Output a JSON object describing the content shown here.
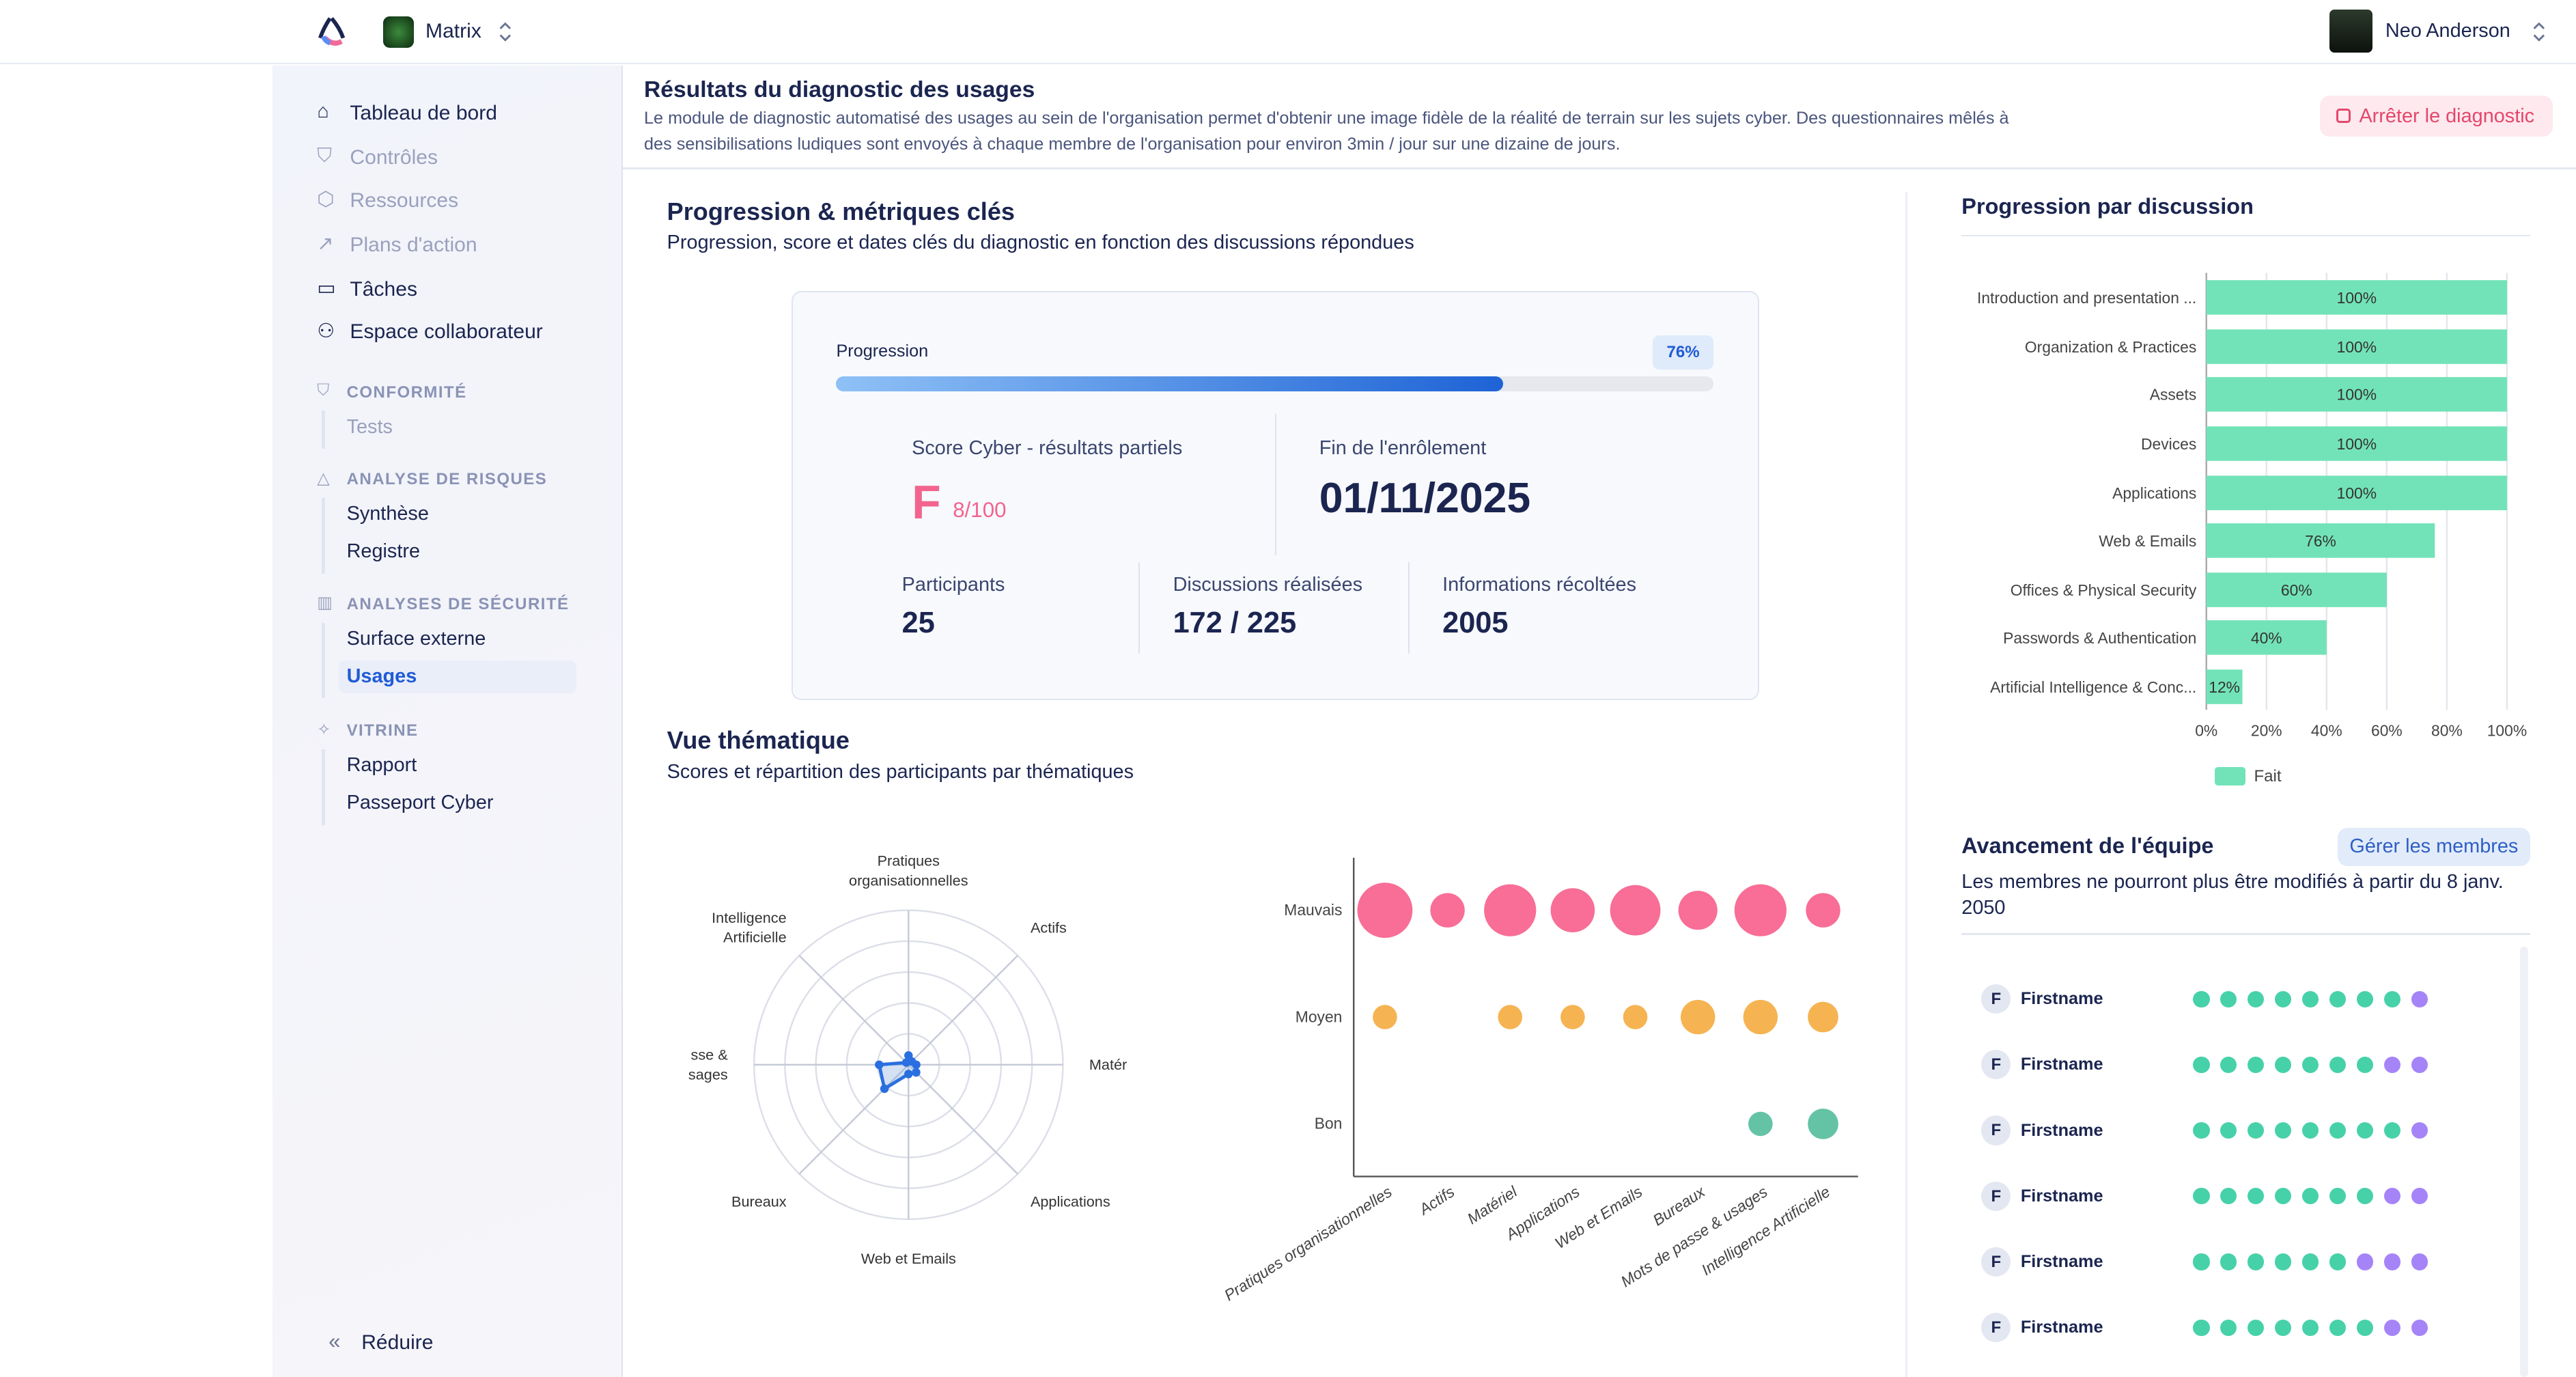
{
  "topbar": {
    "org_name": "Matrix",
    "user_name": "Neo Anderson"
  },
  "sidebar": {
    "items": [
      {
        "label": "Tableau de bord",
        "icon": "home-icon"
      },
      {
        "label": "Contrôles",
        "icon": "shield-icon"
      },
      {
        "label": "Ressources",
        "icon": "box-icon"
      },
      {
        "label": "Plans d'action",
        "icon": "trend-icon"
      },
      {
        "label": "Tâches",
        "icon": "tray-icon"
      },
      {
        "label": "Espace collaborateur",
        "icon": "users-icon"
      }
    ],
    "sections": [
      {
        "title": "CONFORMITÉ",
        "icon": "shield-check-icon",
        "items": [
          "Tests"
        ]
      },
      {
        "title": "ANALYSE DE RISQUES",
        "icon": "warning-icon",
        "items": [
          "Synthèse",
          "Registre"
        ]
      },
      {
        "title": "ANALYSES DE SÉCURITÉ",
        "icon": "bar-chart-icon",
        "items": [
          "Surface externe",
          "Usages"
        ]
      },
      {
        "title": "VITRINE",
        "icon": "sparkles-icon",
        "items": [
          "Rapport",
          "Passeport Cyber"
        ]
      }
    ],
    "active": "Usages",
    "collapse_label": "Réduire"
  },
  "header": {
    "title": "Résultats du diagnostic des usages",
    "desc1": "Le module de diagnostic automatisé des usages au sein de l'organisation permet d'obtenir une image fidèle de la réalité de terrain sur les sujets cyber. Des questionnaires mêlés à",
    "desc2": "des sensibilisations ludiques sont envoyés à chaque membre de l'organisation pour environ 3min / jour sur une dizaine de jours.",
    "stop_button": "Arrêter le diagnostic"
  },
  "metrics": {
    "title": "Progression & métriques clés",
    "subtitle": "Progression, score et dates clés du diagnostic en fonction des discussions répondues",
    "progress_label": "Progression",
    "progress_pct": 76,
    "progress_text": "76%",
    "score_label": "Score Cyber - résultats partiels",
    "score_grade": "F",
    "score_value": "8/100",
    "end_label": "Fin de l'enrôlement",
    "end_date": "01/11/2025",
    "participants_label": "Participants",
    "participants": "25",
    "discussions_label": "Discussions réalisées",
    "discussions": "172 / 225",
    "infos_label": "Informations récoltées",
    "infos": "2005"
  },
  "thematic": {
    "title": "Vue thématique",
    "subtitle": "Scores et répartition des participants par thématiques"
  },
  "colors": {
    "accent": "#1f5bd6",
    "bad": "#f86e96",
    "medium": "#f6b352",
    "good": "#64c3a5",
    "bar": "#72e3b8",
    "done_dot": "#47d1a9",
    "todo_dot": "#a584f8"
  },
  "chart_data": [
    {
      "type": "radar",
      "axes": [
        "Pratiques organisationnelles",
        "Actifs",
        "Matér",
        "Applications",
        "Web et Emails",
        "Bureaux",
        "Mots de passe & usages",
        "Intelligence Artificielle"
      ],
      "axis_labels": [
        [
          "Pratiques",
          "organisationnelles"
        ],
        [
          "Actifs"
        ],
        [
          "Matér"
        ],
        [
          "Applications"
        ],
        [
          "Web et Emails"
        ],
        [
          "Bureaux"
        ],
        [
          "sse &",
          "sages"
        ],
        [
          "Intelligence",
          "Artificielle"
        ]
      ],
      "values": [
        6,
        3,
        5,
        7,
        6,
        22,
        19,
        2
      ],
      "range": [
        0,
        100
      ],
      "rings": 5
    },
    {
      "type": "scatter",
      "subtype": "bubble",
      "categories": [
        "Pratiques organisationnelles",
        "Actifs",
        "Matériel",
        "Applications",
        "Web et Emails",
        "Bureaux",
        "Mots de passe & usages",
        "Intelligence Artificielle"
      ],
      "levels": [
        "Mauvais",
        "Moyen",
        "Bon"
      ],
      "series": [
        {
          "name": "Mauvais",
          "sizes": [
            36,
            14,
            32,
            23,
            30,
            18,
            32,
            14
          ]
        },
        {
          "name": "Moyen",
          "sizes": [
            7,
            0,
            7,
            7,
            7,
            14,
            14,
            11
          ]
        },
        {
          "name": "Bon",
          "sizes": [
            0,
            0,
            0,
            0,
            0,
            0,
            7,
            11
          ]
        }
      ]
    },
    {
      "type": "bar",
      "orientation": "horizontal",
      "title": "Progression par discussion",
      "categories": [
        "Introduction and presentation ...",
        "Organization & Practices",
        "Assets",
        "Devices",
        "Applications",
        "Web & Emails",
        "Offices & Physical Security",
        "Passwords & Authentication",
        "Artificial Intelligence & Conc..."
      ],
      "values": [
        100,
        100,
        100,
        100,
        100,
        76,
        60,
        40,
        12
      ],
      "xticks": [
        "0%",
        "20%",
        "40%",
        "60%",
        "80%",
        "100%"
      ],
      "xlim": [
        0,
        100
      ],
      "legend": "Fait",
      "legend_position": "bottom",
      "grid": true
    }
  ],
  "team": {
    "title": "Avancement de l'équipe",
    "manage_button": "Gérer les membres",
    "note": "Les membres ne pourront plus être modifiés à partir du 8 janv.",
    "note2": "2050",
    "members": [
      {
        "initial": "F",
        "name": "Firstname",
        "done": 8,
        "total": 9
      },
      {
        "initial": "F",
        "name": "Firstname",
        "done": 7,
        "total": 9
      },
      {
        "initial": "F",
        "name": "Firstname",
        "done": 8,
        "total": 9
      },
      {
        "initial": "F",
        "name": "Firstname",
        "done": 7,
        "total": 9
      },
      {
        "initial": "F",
        "name": "Firstname",
        "done": 6,
        "total": 9
      },
      {
        "initial": "F",
        "name": "Firstname",
        "done": 7,
        "total": 9
      }
    ]
  }
}
